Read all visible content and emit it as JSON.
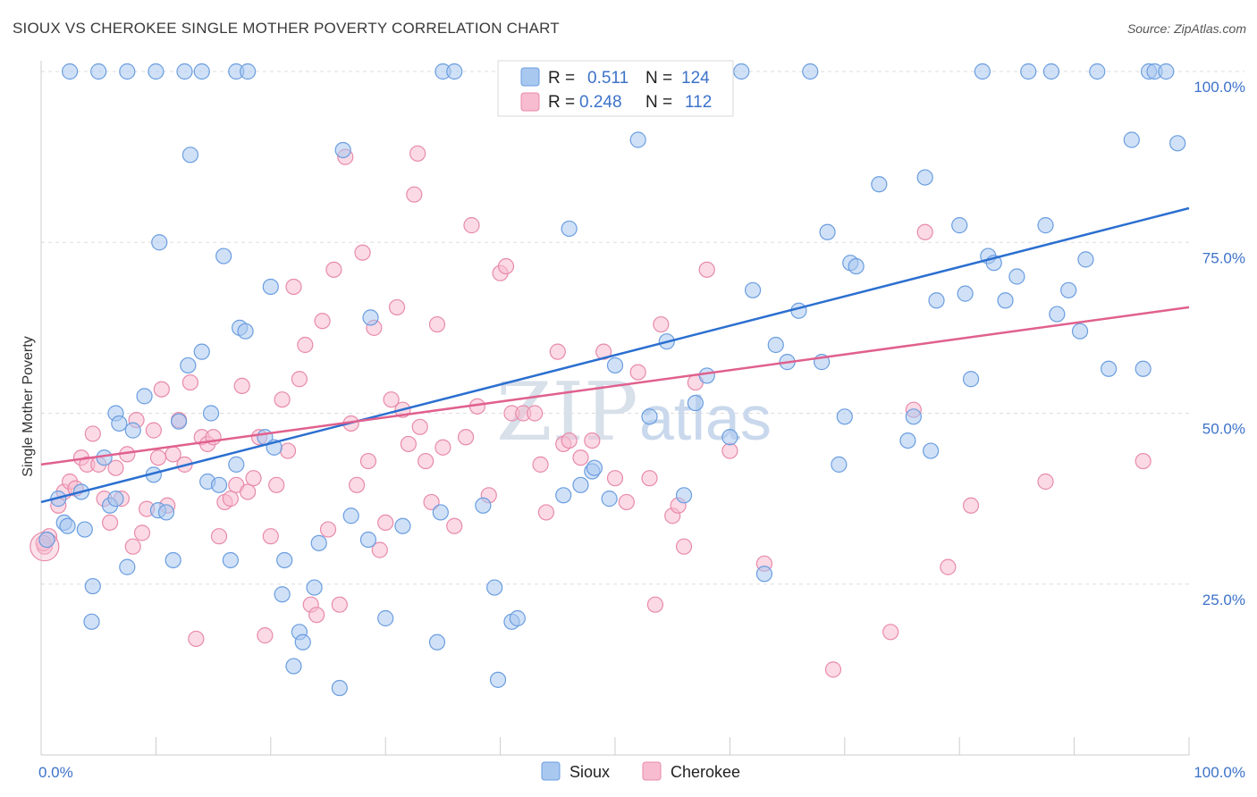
{
  "title": "SIOUX VS CHEROKEE SINGLE MOTHER POVERTY CORRELATION CHART",
  "source": "Source: ZipAtlas.com",
  "watermark": {
    "zip": "ZIP",
    "atlas": "atlas"
  },
  "colors": {
    "sioux_fill": "#a9c8f0",
    "sioux_stroke": "#6a9de0",
    "sioux_line": "#2b6fd0",
    "cherokee_fill": "#f7bcd0",
    "cherokee_stroke": "#e88aaa",
    "cherokee_line": "#e0608e",
    "tick_label": "#3d72c9",
    "grid": "#dddddd"
  },
  "legend": {
    "sioux": {
      "r_label": "R =",
      "r_value": "0.511",
      "n_label": "N =",
      "n_value": "124"
    },
    "cherokee": {
      "r_label": "R =",
      "r_value": "0.248",
      "n_label": "N =",
      "n_value": "112"
    }
  },
  "chart_data": {
    "type": "scatter",
    "title": "SIOUX VS CHEROKEE SINGLE MOTHER POVERTY CORRELATION CHART",
    "xlabel": "",
    "ylabel": "Single Mother Poverty",
    "xlim": [
      0,
      100
    ],
    "ylim": [
      0,
      100
    ],
    "x_tick_labels": [
      "0.0%",
      "100.0%"
    ],
    "y_tick_labels": [
      "25.0%",
      "50.0%",
      "75.0%",
      "100.0%"
    ],
    "y_ticks": [
      25,
      50,
      75,
      100
    ],
    "grid": true,
    "legend_position": "top-center",
    "series": [
      {
        "name": "Sioux",
        "trend": {
          "x": [
            0,
            100
          ],
          "y": [
            37,
            80
          ]
        },
        "points": [
          [
            0.5,
            31.5
          ],
          [
            1.5,
            37.5
          ],
          [
            2,
            34
          ],
          [
            2.3,
            33.5
          ],
          [
            3.5,
            38.5
          ],
          [
            3.8,
            33
          ],
          [
            4.5,
            24.7
          ],
          [
            4.4,
            19.5
          ],
          [
            5.5,
            43.5
          ],
          [
            6,
            36.5
          ],
          [
            6.5,
            37.5
          ],
          [
            6.5,
            50
          ],
          [
            6.8,
            48.5
          ],
          [
            7.5,
            27.5
          ],
          [
            8,
            47.5
          ],
          [
            9,
            52.5
          ],
          [
            9.8,
            41
          ],
          [
            10.2,
            35.8
          ],
          [
            10.3,
            75
          ],
          [
            10.9,
            35.5
          ],
          [
            11.5,
            28.5
          ],
          [
            12,
            48.8
          ],
          [
            12.8,
            57
          ],
          [
            13,
            87.8
          ],
          [
            14,
            59
          ],
          [
            14.5,
            40
          ],
          [
            14.8,
            50
          ],
          [
            15.5,
            39.5
          ],
          [
            15.9,
            73
          ],
          [
            16.5,
            28.5
          ],
          [
            17,
            42.5
          ],
          [
            17.3,
            62.5
          ],
          [
            17.8,
            62
          ],
          [
            19.5,
            46.5
          ],
          [
            20,
            68.5
          ],
          [
            20.3,
            45
          ],
          [
            21,
            23.5
          ],
          [
            21.2,
            28.5
          ],
          [
            22.5,
            18
          ],
          [
            22,
            13
          ],
          [
            22.8,
            16.5
          ],
          [
            23.8,
            24.5
          ],
          [
            24.2,
            31
          ],
          [
            26,
            9.8
          ],
          [
            26.3,
            88.5
          ],
          [
            27,
            35
          ],
          [
            28.5,
            31.5
          ],
          [
            28.7,
            64
          ],
          [
            30,
            20
          ],
          [
            31.5,
            33.5
          ],
          [
            34.5,
            16.5
          ],
          [
            34.8,
            35.5
          ],
          [
            35,
            100
          ],
          [
            36,
            100
          ],
          [
            38.5,
            36.5
          ],
          [
            39.5,
            24.5
          ],
          [
            39.8,
            11
          ],
          [
            41,
            19.5
          ],
          [
            41.5,
            20
          ],
          [
            42.5,
            100
          ],
          [
            46,
            77
          ],
          [
            45.5,
            38
          ],
          [
            47,
            39.5
          ],
          [
            48,
            41.5
          ],
          [
            48.2,
            42
          ],
          [
            49.5,
            37.5
          ],
          [
            50,
            57
          ],
          [
            52,
            90
          ],
          [
            53,
            49.5
          ],
          [
            54.5,
            60.5
          ],
          [
            56,
            38
          ],
          [
            57,
            51.5
          ],
          [
            58,
            55.5
          ],
          [
            60,
            46.5
          ],
          [
            61,
            100
          ],
          [
            62,
            68
          ],
          [
            63,
            26.5
          ],
          [
            64,
            60
          ],
          [
            65,
            57.5
          ],
          [
            66,
            65
          ],
          [
            67,
            100
          ],
          [
            68,
            57.5
          ],
          [
            68.5,
            76.5
          ],
          [
            69.5,
            42.5
          ],
          [
            70,
            49.5
          ],
          [
            70.5,
            72
          ],
          [
            71,
            71.5
          ],
          [
            73,
            83.5
          ],
          [
            75.5,
            46
          ],
          [
            76,
            49.5
          ],
          [
            77,
            84.5
          ],
          [
            77.5,
            44.5
          ],
          [
            78,
            66.5
          ],
          [
            80,
            77.5
          ],
          [
            80.5,
            67.5
          ],
          [
            81,
            55
          ],
          [
            82,
            100
          ],
          [
            82.5,
            73
          ],
          [
            83,
            72
          ],
          [
            84,
            66.5
          ],
          [
            85,
            70
          ],
          [
            86,
            100
          ],
          [
            87.5,
            77.5
          ],
          [
            88,
            100
          ],
          [
            88.5,
            64.5
          ],
          [
            89.5,
            68
          ],
          [
            90.5,
            62
          ],
          [
            91,
            72.5
          ],
          [
            92,
            100
          ],
          [
            93,
            56.5
          ],
          [
            95,
            90
          ],
          [
            96,
            56.5
          ],
          [
            96.5,
            100
          ],
          [
            97,
            100
          ],
          [
            98,
            100
          ],
          [
            99,
            89.5
          ],
          [
            2.5,
            100
          ],
          [
            5,
            100
          ],
          [
            7.5,
            100
          ],
          [
            10,
            100
          ],
          [
            12.5,
            100
          ],
          [
            14,
            100
          ],
          [
            17,
            100
          ],
          [
            18,
            100
          ]
        ]
      },
      {
        "name": "Cherokee",
        "trend": {
          "x": [
            0,
            100
          ],
          "y": [
            42.5,
            65.5
          ]
        },
        "points": [
          [
            0.3,
            30.5
          ],
          [
            0.7,
            32
          ],
          [
            1.5,
            36.5
          ],
          [
            2,
            38.5
          ],
          [
            2.5,
            40
          ],
          [
            3,
            39
          ],
          [
            3.5,
            43.5
          ],
          [
            4,
            42.5
          ],
          [
            4.5,
            47
          ],
          [
            5,
            42.5
          ],
          [
            5.5,
            37.5
          ],
          [
            6,
            34
          ],
          [
            6.5,
            42
          ],
          [
            7,
            37.5
          ],
          [
            7.5,
            44
          ],
          [
            8,
            30.5
          ],
          [
            8.3,
            49
          ],
          [
            8.8,
            32.5
          ],
          [
            9.2,
            36
          ],
          [
            9.8,
            47.5
          ],
          [
            10.2,
            43.5
          ],
          [
            10.5,
            53.5
          ],
          [
            11,
            36.5
          ],
          [
            11.5,
            44
          ],
          [
            12,
            49
          ],
          [
            12.5,
            42.5
          ],
          [
            13,
            54.5
          ],
          [
            13.5,
            17
          ],
          [
            14,
            46.5
          ],
          [
            14.5,
            45.5
          ],
          [
            15,
            46.5
          ],
          [
            15.5,
            32
          ],
          [
            16,
            37
          ],
          [
            16.5,
            37.5
          ],
          [
            17,
            39.5
          ],
          [
            17.5,
            54
          ],
          [
            18,
            38.5
          ],
          [
            18.5,
            40.5
          ],
          [
            19,
            46.5
          ],
          [
            19.5,
            17.5
          ],
          [
            20,
            32
          ],
          [
            20.5,
            39.5
          ],
          [
            21,
            52
          ],
          [
            21.5,
            44.5
          ],
          [
            22,
            68.5
          ],
          [
            22.5,
            55
          ],
          [
            23,
            60
          ],
          [
            23.5,
            22
          ],
          [
            24,
            20.5
          ],
          [
            24.5,
            63.5
          ],
          [
            25,
            33
          ],
          [
            25.5,
            71
          ],
          [
            26,
            22
          ],
          [
            26.5,
            87.5
          ],
          [
            27,
            48.5
          ],
          [
            27.5,
            39.5
          ],
          [
            28,
            73.5
          ],
          [
            28.5,
            43
          ],
          [
            29,
            62.5
          ],
          [
            29.5,
            30
          ],
          [
            30,
            34
          ],
          [
            30.5,
            52
          ],
          [
            31,
            65.5
          ],
          [
            31.5,
            50.5
          ],
          [
            32,
            45.5
          ],
          [
            32.5,
            82
          ],
          [
            32.8,
            88
          ],
          [
            33,
            48
          ],
          [
            33.5,
            43
          ],
          [
            34,
            37
          ],
          [
            34.5,
            63
          ],
          [
            35,
            45
          ],
          [
            36,
            33.5
          ],
          [
            37,
            46.5
          ],
          [
            37.5,
            77.5
          ],
          [
            38,
            51
          ],
          [
            39,
            38
          ],
          [
            40,
            70.5
          ],
          [
            40.5,
            71.5
          ],
          [
            41,
            50
          ],
          [
            42,
            50
          ],
          [
            43,
            50
          ],
          [
            43.5,
            42.5
          ],
          [
            44,
            35.5
          ],
          [
            45,
            59
          ],
          [
            45.5,
            45.5
          ],
          [
            46,
            46
          ],
          [
            47,
            43.5
          ],
          [
            48,
            46
          ],
          [
            49,
            59
          ],
          [
            50,
            40.5
          ],
          [
            51,
            37
          ],
          [
            52,
            56
          ],
          [
            53,
            40.5
          ],
          [
            53.5,
            22
          ],
          [
            54,
            63
          ],
          [
            55,
            35
          ],
          [
            55.5,
            36.5
          ],
          [
            56,
            30.5
          ],
          [
            57,
            54.5
          ],
          [
            58,
            71
          ],
          [
            60,
            44.5
          ],
          [
            63,
            28
          ],
          [
            69,
            12.5
          ],
          [
            74,
            18
          ],
          [
            76,
            50.5
          ],
          [
            77,
            76.5
          ],
          [
            79,
            27.5
          ],
          [
            81,
            36.5
          ],
          [
            87.5,
            40
          ],
          [
            96,
            43
          ],
          [
            0.2,
            31
          ]
        ]
      }
    ]
  },
  "bottom_legend": {
    "sioux": "Sioux",
    "cherokee": "Cherokee"
  }
}
